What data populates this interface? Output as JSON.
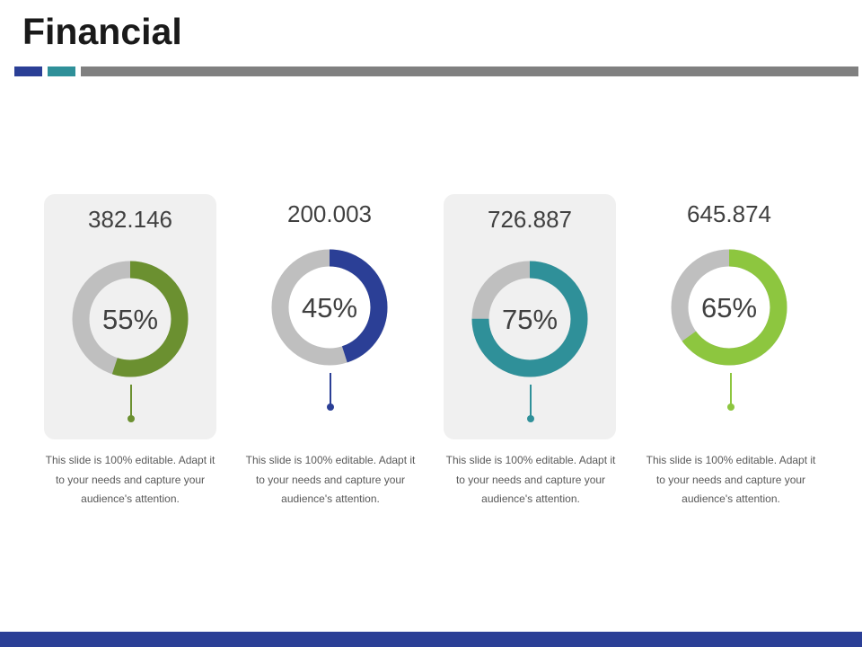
{
  "slide": {
    "title": "Financial",
    "colors": {
      "accent_blue": "#2b3f96",
      "accent_teal": "#2f9099",
      "rule_gray": "#808080",
      "ring_gray": "#bfbfbf",
      "card_bg": "#f0f0f0"
    }
  },
  "chart_data": [
    {
      "type": "pie",
      "value_label": "382.146",
      "percent": 55,
      "percent_label": "55%",
      "color": "#6b9030",
      "description": "This slide is 100% editable. Adapt it to your needs and capture your audience's attention."
    },
    {
      "type": "pie",
      "value_label": "200.003",
      "percent": 45,
      "percent_label": "45%",
      "color": "#2b3f96",
      "description": "This slide is 100% editable. Adapt it to your needs and capture your audience's attention."
    },
    {
      "type": "pie",
      "value_label": "726.887",
      "percent": 75,
      "percent_label": "75%",
      "color": "#2f9099",
      "description": "This slide is 100% editable. Adapt it to your needs and capture your audience's attention."
    },
    {
      "type": "pie",
      "value_label": "645.874",
      "percent": 65,
      "percent_label": "65%",
      "color": "#8dc63f",
      "description": "This slide is 100% editable. Adapt it to your needs and capture your audience's attention."
    }
  ]
}
